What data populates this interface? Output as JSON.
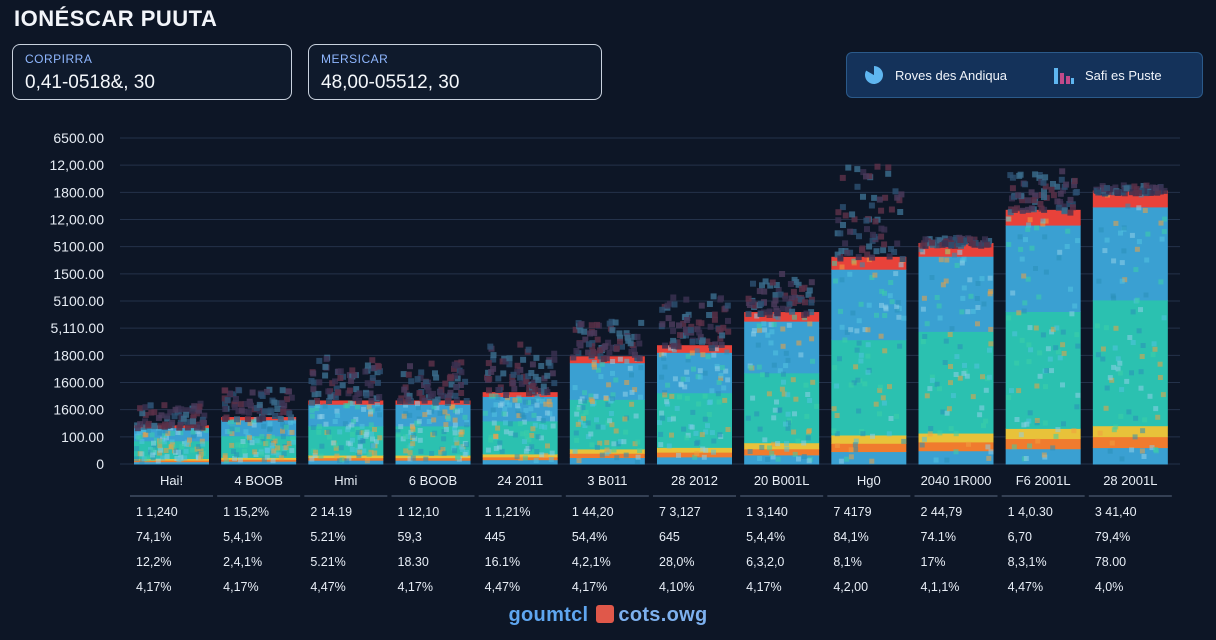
{
  "header": {
    "title": "IONÉSCAR PUUTA"
  },
  "kpis": [
    {
      "label": "CORPIRRA",
      "value": "0,41-0518&, 30"
    },
    {
      "label": "MERSICAR",
      "value": "48,00-05512, 30"
    }
  ],
  "legend": [
    {
      "label": "Roves des Andiqua",
      "icon": "pie-chart-icon"
    },
    {
      "label": "Safi es Puste",
      "icon": "bar-chart-icon"
    }
  ],
  "colors": {
    "background": "#0d1626",
    "blue": "#3aa0d2",
    "teal": "#2bc1b0",
    "yellow": "#e8c23a",
    "orange": "#f07b2e",
    "red": "#e8423a",
    "noise": "#3a3050"
  },
  "chart_data": {
    "type": "bar",
    "yticks": [
      "6500.00",
      "12,00.00",
      "1800.00",
      "12,00.00",
      "5100.00",
      "1500.00",
      "5100.00",
      "5,110.00",
      "1800.00",
      "1600.00",
      "1600.00",
      "100.00",
      "0"
    ],
    "categories": [
      "Hai!",
      "4 BOOB",
      "Hmi",
      "6 BOOB",
      "24 2011",
      "3 B011",
      "28 2012",
      "20 B001L",
      "Hg0",
      "2040 1R000",
      "F6 2001L",
      "28 2001L"
    ],
    "values": [
      1400,
      1700,
      2300,
      2300,
      2600,
      3900,
      4300,
      5500,
      7500,
      8000,
      9200,
      9900
    ],
    "noise_top": [
      2300,
      2900,
      4000,
      3900,
      4500,
      5300,
      6200,
      7000,
      11000,
      8300,
      11000,
      10200
    ],
    "ylim": [
      0,
      11800
    ],
    "grid": true,
    "table_rows": [
      [
        "1 1,240",
        "1 15,2%",
        "2 14.19",
        "1 12,10",
        "1 1,21%",
        "1 44,20",
        "7 3,127",
        "1 3,140",
        "7 4179",
        "2 44,79",
        "1 4,0.30",
        "3 41,40"
      ],
      [
        "74,1%",
        "5,4,1%",
        "5.21%",
        "59,3",
        "445",
        "54,4%",
        "645",
        "5,4,4%",
        "84,1%",
        "74.1%",
        "6,70",
        "79,4%"
      ],
      [
        "12,2%",
        "2,4,1%",
        "5.21%",
        "18.30",
        "16.1%",
        "4,2,1%",
        "28,0%",
        "6,3,2,0",
        "8,1%",
        "17%",
        "8,3,1%",
        "78.00"
      ],
      [
        "4,17%",
        "4,17%",
        "4,47%",
        "4,17%",
        "4,47%",
        "4,17%",
        "4,10%",
        "4,17%",
        "4,2,00",
        "4,1,1%",
        "4,47%",
        "4,0%"
      ]
    ]
  },
  "footer": {
    "brand_left": "goumtcl",
    "brand_right": "cots.owg"
  }
}
